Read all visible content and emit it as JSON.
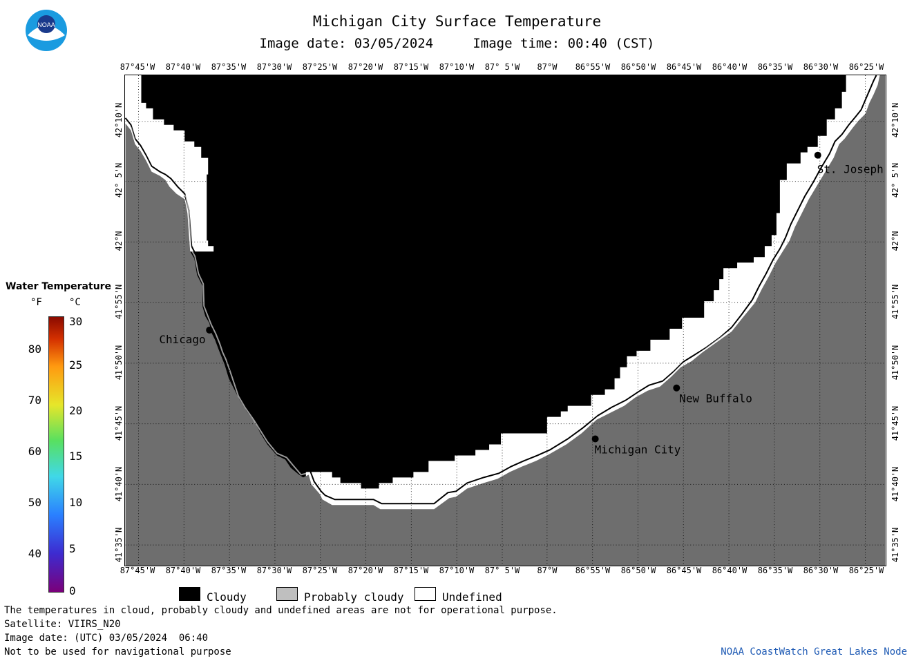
{
  "header": {
    "title": "Michigan City Surface Temperature",
    "subtitle": "Image date: 03/05/2024     Image time: 00:40 (CST)",
    "logo_text": "NOAA"
  },
  "longitudes": [
    "87°45'W",
    "87°40'W",
    "87°35'W",
    "87°30'W",
    "87°25'W",
    "87°20'W",
    "87°15'W",
    "87°10'W",
    "87° 5'W",
    "87°W",
    "86°55'W",
    "86°50'W",
    "86°45'W",
    "86°40'W",
    "86°35'W",
    "86°30'W",
    "86°25'W"
  ],
  "latitudes": [
    "42°10'N",
    "42° 5'N",
    "42°N",
    "41°55'N",
    "41°50'N",
    "41°45'N",
    "41°40'N",
    "41°35'N"
  ],
  "cities": [
    {
      "name": "Chicago"
    },
    {
      "name": "St. Joseph"
    },
    {
      "name": "New Buffalo"
    },
    {
      "name": "Michigan City"
    }
  ],
  "legend": {
    "title": "Water Temperature",
    "unit_f": "°F",
    "unit_c": "°C",
    "ticks_f": [
      "80",
      "70",
      "60",
      "50",
      "40"
    ],
    "ticks_c": [
      "30",
      "25",
      "20",
      "15",
      "10",
      "5",
      "0"
    ]
  },
  "key": {
    "cloudy": "Cloudy",
    "probably_cloudy": "Probably cloudy",
    "undefined": "Undefined",
    "colors": {
      "cloudy": "#000000",
      "probably_cloudy": "#bfbfbf",
      "undefined": "#ffffff",
      "land": "#6e6e6e"
    }
  },
  "footer": {
    "line1": "The temperatures in cloud, probably cloudy and undefined areas are not for operational purpose.",
    "line2": "Satellite: VIIRS_N20",
    "line3": "Image date: (UTC) 03/05/2024  06:40",
    "line4": "Not to be used for navigational purpose",
    "credit": "NOAA CoastWatch Great Lakes Node"
  }
}
